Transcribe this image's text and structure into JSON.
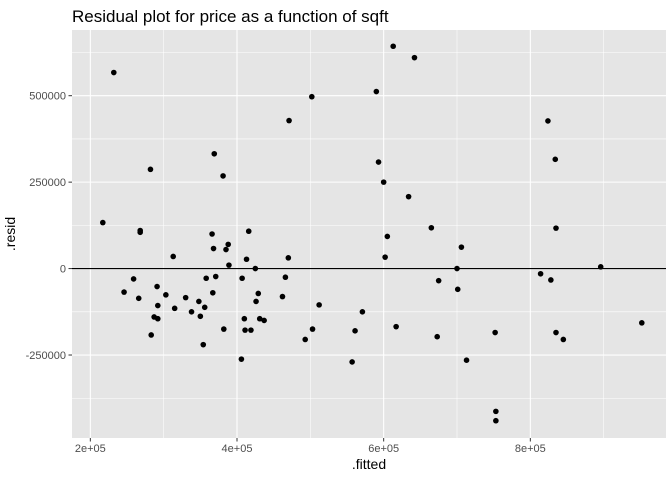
{
  "chart_data": {
    "type": "scatter",
    "title": "Residual plot for price as a function of sqft",
    "xlabel": ".fitted",
    "ylabel": ".resid",
    "xlim": [
      175000,
      985000
    ],
    "ylim": [
      -490000,
      690000
    ],
    "x_ticks": [
      {
        "value": 200000,
        "label": "2e+05"
      },
      {
        "value": 400000,
        "label": "4e+05"
      },
      {
        "value": 600000,
        "label": "6e+05"
      },
      {
        "value": 800000,
        "label": "8e+05"
      }
    ],
    "y_ticks": [
      {
        "value": -250000,
        "label": "-250000"
      },
      {
        "value": 0,
        "label": "0"
      },
      {
        "value": 250000,
        "label": "250000"
      },
      {
        "value": 500000,
        "label": "500000"
      }
    ],
    "reference_line": 0,
    "grid": true,
    "colors": {
      "panel_background": "#e5e5e5",
      "grid_major": "#ffffff",
      "point": "#000000",
      "reference_line": "#000000"
    },
    "points": [
      {
        "x": 217000,
        "y": 133000
      },
      {
        "x": 232000,
        "y": 567000
      },
      {
        "x": 246000,
        "y": -68000
      },
      {
        "x": 259000,
        "y": -30000
      },
      {
        "x": 266000,
        "y": -86000
      },
      {
        "x": 268000,
        "y": 110000
      },
      {
        "x": 268000,
        "y": 105000
      },
      {
        "x": 282000,
        "y": 287000
      },
      {
        "x": 283000,
        "y": -192000
      },
      {
        "x": 287000,
        "y": -140000
      },
      {
        "x": 291000,
        "y": -52000
      },
      {
        "x": 292000,
        "y": -107000
      },
      {
        "x": 292000,
        "y": -145000
      },
      {
        "x": 303000,
        "y": -76000
      },
      {
        "x": 313000,
        "y": 35000
      },
      {
        "x": 315000,
        "y": -115000
      },
      {
        "x": 330000,
        "y": -84000
      },
      {
        "x": 338000,
        "y": -125000
      },
      {
        "x": 348000,
        "y": -95000
      },
      {
        "x": 350000,
        "y": -138000
      },
      {
        "x": 354000,
        "y": -220000
      },
      {
        "x": 356000,
        "y": -112000
      },
      {
        "x": 358000,
        "y": -28000
      },
      {
        "x": 366000,
        "y": 100000
      },
      {
        "x": 367000,
        "y": -70000
      },
      {
        "x": 368000,
        "y": 58000
      },
      {
        "x": 369000,
        "y": 332000
      },
      {
        "x": 371000,
        "y": -23000
      },
      {
        "x": 381000,
        "y": 268000
      },
      {
        "x": 382000,
        "y": -175000
      },
      {
        "x": 385000,
        "y": 55000
      },
      {
        "x": 388000,
        "y": 70000
      },
      {
        "x": 389000,
        "y": 10000
      },
      {
        "x": 406000,
        "y": -262000
      },
      {
        "x": 407000,
        "y": -28000
      },
      {
        "x": 410000,
        "y": -145000
      },
      {
        "x": 411000,
        "y": -178000
      },
      {
        "x": 413000,
        "y": 27000
      },
      {
        "x": 416000,
        "y": 108000
      },
      {
        "x": 419000,
        "y": -178000
      },
      {
        "x": 425000,
        "y": 0
      },
      {
        "x": 426000,
        "y": -95000
      },
      {
        "x": 429000,
        "y": -72000
      },
      {
        "x": 431000,
        "y": -145000
      },
      {
        "x": 437000,
        "y": -150000
      },
      {
        "x": 462000,
        "y": -81000
      },
      {
        "x": 466000,
        "y": -25000
      },
      {
        "x": 470000,
        "y": 31000
      },
      {
        "x": 471000,
        "y": 428000
      },
      {
        "x": 493000,
        "y": -205000
      },
      {
        "x": 502000,
        "y": 497000
      },
      {
        "x": 503000,
        "y": -175000
      },
      {
        "x": 512000,
        "y": -105000
      },
      {
        "x": 557000,
        "y": -270000
      },
      {
        "x": 561000,
        "y": -180000
      },
      {
        "x": 571000,
        "y": -125000
      },
      {
        "x": 590000,
        "y": 512000
      },
      {
        "x": 593000,
        "y": 308000
      },
      {
        "x": 600000,
        "y": 250000
      },
      {
        "x": 602000,
        "y": 33000
      },
      {
        "x": 605000,
        "y": 93000
      },
      {
        "x": 613000,
        "y": 643000
      },
      {
        "x": 617000,
        "y": -168000
      },
      {
        "x": 634000,
        "y": 208000
      },
      {
        "x": 642000,
        "y": 610000
      },
      {
        "x": 665000,
        "y": 118000
      },
      {
        "x": 673000,
        "y": -197000
      },
      {
        "x": 675000,
        "y": -35000
      },
      {
        "x": 700000,
        "y": 0
      },
      {
        "x": 701000,
        "y": -60000
      },
      {
        "x": 706000,
        "y": 62000
      },
      {
        "x": 713000,
        "y": -265000
      },
      {
        "x": 752000,
        "y": -185000
      },
      {
        "x": 753000,
        "y": -413000
      },
      {
        "x": 753000,
        "y": -440000
      },
      {
        "x": 814000,
        "y": -15000
      },
      {
        "x": 824000,
        "y": 427000
      },
      {
        "x": 828000,
        "y": -33000
      },
      {
        "x": 834000,
        "y": 316000
      },
      {
        "x": 835000,
        "y": 117000
      },
      {
        "x": 835000,
        "y": -185000
      },
      {
        "x": 845000,
        "y": -205000
      },
      {
        "x": 896000,
        "y": 5000
      },
      {
        "x": 952000,
        "y": -157000
      }
    ]
  }
}
